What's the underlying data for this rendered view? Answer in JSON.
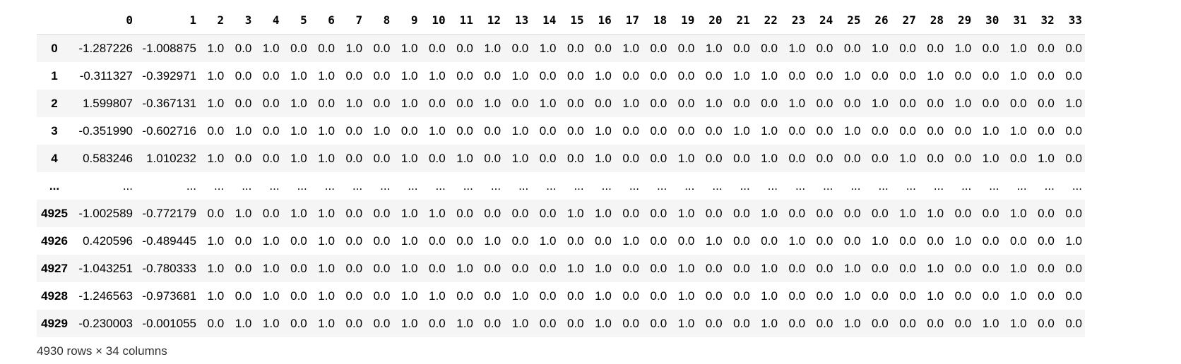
{
  "columns": [
    "0",
    "1",
    "2",
    "3",
    "4",
    "5",
    "6",
    "7",
    "8",
    "9",
    "10",
    "11",
    "12",
    "13",
    "14",
    "15",
    "16",
    "17",
    "18",
    "19",
    "20",
    "21",
    "22",
    "23",
    "24",
    "25",
    "26",
    "27",
    "28",
    "29",
    "30",
    "31",
    "32",
    "33"
  ],
  "rows": [
    {
      "index": "0",
      "values": [
        "-1.287226",
        "-1.008875",
        "1.0",
        "0.0",
        "1.0",
        "0.0",
        "0.0",
        "1.0",
        "0.0",
        "1.0",
        "0.0",
        "0.0",
        "1.0",
        "0.0",
        "1.0",
        "0.0",
        "0.0",
        "1.0",
        "0.0",
        "0.0",
        "1.0",
        "0.0",
        "0.0",
        "1.0",
        "0.0",
        "0.0",
        "1.0",
        "0.0",
        "0.0",
        "1.0",
        "0.0",
        "1.0",
        "0.0",
        "0.0"
      ]
    },
    {
      "index": "1",
      "values": [
        "-0.311327",
        "-0.392971",
        "1.0",
        "0.0",
        "0.0",
        "1.0",
        "1.0",
        "0.0",
        "0.0",
        "1.0",
        "1.0",
        "0.0",
        "0.0",
        "1.0",
        "0.0",
        "0.0",
        "1.0",
        "0.0",
        "0.0",
        "0.0",
        "0.0",
        "1.0",
        "1.0",
        "0.0",
        "0.0",
        "1.0",
        "0.0",
        "0.0",
        "1.0",
        "0.0",
        "0.0",
        "1.0",
        "0.0",
        "0.0"
      ]
    },
    {
      "index": "2",
      "values": [
        "1.599807",
        "-0.367131",
        "1.0",
        "0.0",
        "0.0",
        "1.0",
        "0.0",
        "1.0",
        "0.0",
        "1.0",
        "0.0",
        "0.0",
        "1.0",
        "0.0",
        "1.0",
        "0.0",
        "0.0",
        "1.0",
        "0.0",
        "0.0",
        "1.0",
        "0.0",
        "0.0",
        "1.0",
        "0.0",
        "0.0",
        "1.0",
        "0.0",
        "0.0",
        "1.0",
        "0.0",
        "0.0",
        "0.0",
        "1.0"
      ]
    },
    {
      "index": "3",
      "values": [
        "-0.351990",
        "-0.602716",
        "0.0",
        "1.0",
        "0.0",
        "1.0",
        "1.0",
        "0.0",
        "1.0",
        "0.0",
        "1.0",
        "0.0",
        "0.0",
        "1.0",
        "0.0",
        "0.0",
        "1.0",
        "0.0",
        "0.0",
        "0.0",
        "0.0",
        "1.0",
        "1.0",
        "0.0",
        "0.0",
        "1.0",
        "0.0",
        "0.0",
        "0.0",
        "0.0",
        "1.0",
        "1.0",
        "0.0",
        "0.0"
      ]
    },
    {
      "index": "4",
      "values": [
        "0.583246",
        "1.010232",
        "1.0",
        "0.0",
        "0.0",
        "1.0",
        "1.0",
        "0.0",
        "0.0",
        "1.0",
        "0.0",
        "1.0",
        "0.0",
        "1.0",
        "0.0",
        "0.0",
        "1.0",
        "0.0",
        "0.0",
        "1.0",
        "0.0",
        "0.0",
        "1.0",
        "0.0",
        "0.0",
        "0.0",
        "0.0",
        "1.0",
        "0.0",
        "0.0",
        "1.0",
        "0.0",
        "1.0",
        "0.0"
      ]
    },
    {
      "index": "...",
      "values": [
        "...",
        "...",
        "...",
        "...",
        "...",
        "...",
        "...",
        "...",
        "...",
        "...",
        "...",
        "...",
        "...",
        "...",
        "...",
        "...",
        "...",
        "...",
        "...",
        "...",
        "...",
        "...",
        "...",
        "...",
        "...",
        "...",
        "...",
        "...",
        "...",
        "...",
        "...",
        "...",
        "...",
        "..."
      ]
    },
    {
      "index": "4925",
      "values": [
        "-1.002589",
        "-0.772179",
        "0.0",
        "1.0",
        "0.0",
        "1.0",
        "1.0",
        "0.0",
        "0.0",
        "1.0",
        "1.0",
        "0.0",
        "0.0",
        "0.0",
        "0.0",
        "1.0",
        "1.0",
        "0.0",
        "0.0",
        "1.0",
        "0.0",
        "0.0",
        "1.0",
        "0.0",
        "0.0",
        "0.0",
        "0.0",
        "1.0",
        "1.0",
        "0.0",
        "0.0",
        "1.0",
        "0.0",
        "0.0"
      ]
    },
    {
      "index": "4926",
      "values": [
        "0.420596",
        "-0.489445",
        "1.0",
        "0.0",
        "1.0",
        "0.0",
        "1.0",
        "0.0",
        "0.0",
        "1.0",
        "0.0",
        "0.0",
        "1.0",
        "0.0",
        "1.0",
        "0.0",
        "0.0",
        "1.0",
        "0.0",
        "0.0",
        "1.0",
        "0.0",
        "0.0",
        "1.0",
        "0.0",
        "0.0",
        "1.0",
        "0.0",
        "0.0",
        "1.0",
        "0.0",
        "0.0",
        "0.0",
        "1.0"
      ]
    },
    {
      "index": "4927",
      "values": [
        "-1.043251",
        "-0.780333",
        "1.0",
        "0.0",
        "1.0",
        "0.0",
        "1.0",
        "0.0",
        "0.0",
        "1.0",
        "0.0",
        "1.0",
        "0.0",
        "0.0",
        "0.0",
        "1.0",
        "1.0",
        "0.0",
        "0.0",
        "1.0",
        "0.0",
        "0.0",
        "1.0",
        "0.0",
        "0.0",
        "1.0",
        "0.0",
        "0.0",
        "1.0",
        "0.0",
        "0.0",
        "1.0",
        "0.0",
        "0.0"
      ]
    },
    {
      "index": "4928",
      "values": [
        "-1.246563",
        "-0.973681",
        "1.0",
        "0.0",
        "1.0",
        "0.0",
        "1.0",
        "0.0",
        "0.0",
        "1.0",
        "1.0",
        "0.0",
        "0.0",
        "1.0",
        "0.0",
        "0.0",
        "1.0",
        "0.0",
        "0.0",
        "1.0",
        "0.0",
        "0.0",
        "1.0",
        "0.0",
        "0.0",
        "1.0",
        "0.0",
        "0.0",
        "1.0",
        "0.0",
        "0.0",
        "1.0",
        "0.0",
        "0.0"
      ]
    },
    {
      "index": "4929",
      "values": [
        "-0.230003",
        "-0.001055",
        "0.0",
        "1.0",
        "1.0",
        "0.0",
        "1.0",
        "0.0",
        "0.0",
        "1.0",
        "0.0",
        "1.0",
        "0.0",
        "1.0",
        "0.0",
        "0.0",
        "1.0",
        "0.0",
        "0.0",
        "1.0",
        "0.0",
        "0.0",
        "1.0",
        "0.0",
        "0.0",
        "1.0",
        "0.0",
        "0.0",
        "0.0",
        "0.0",
        "1.0",
        "1.0",
        "0.0",
        "0.0"
      ]
    }
  ],
  "shape_text": "4930 rows × 34 columns"
}
